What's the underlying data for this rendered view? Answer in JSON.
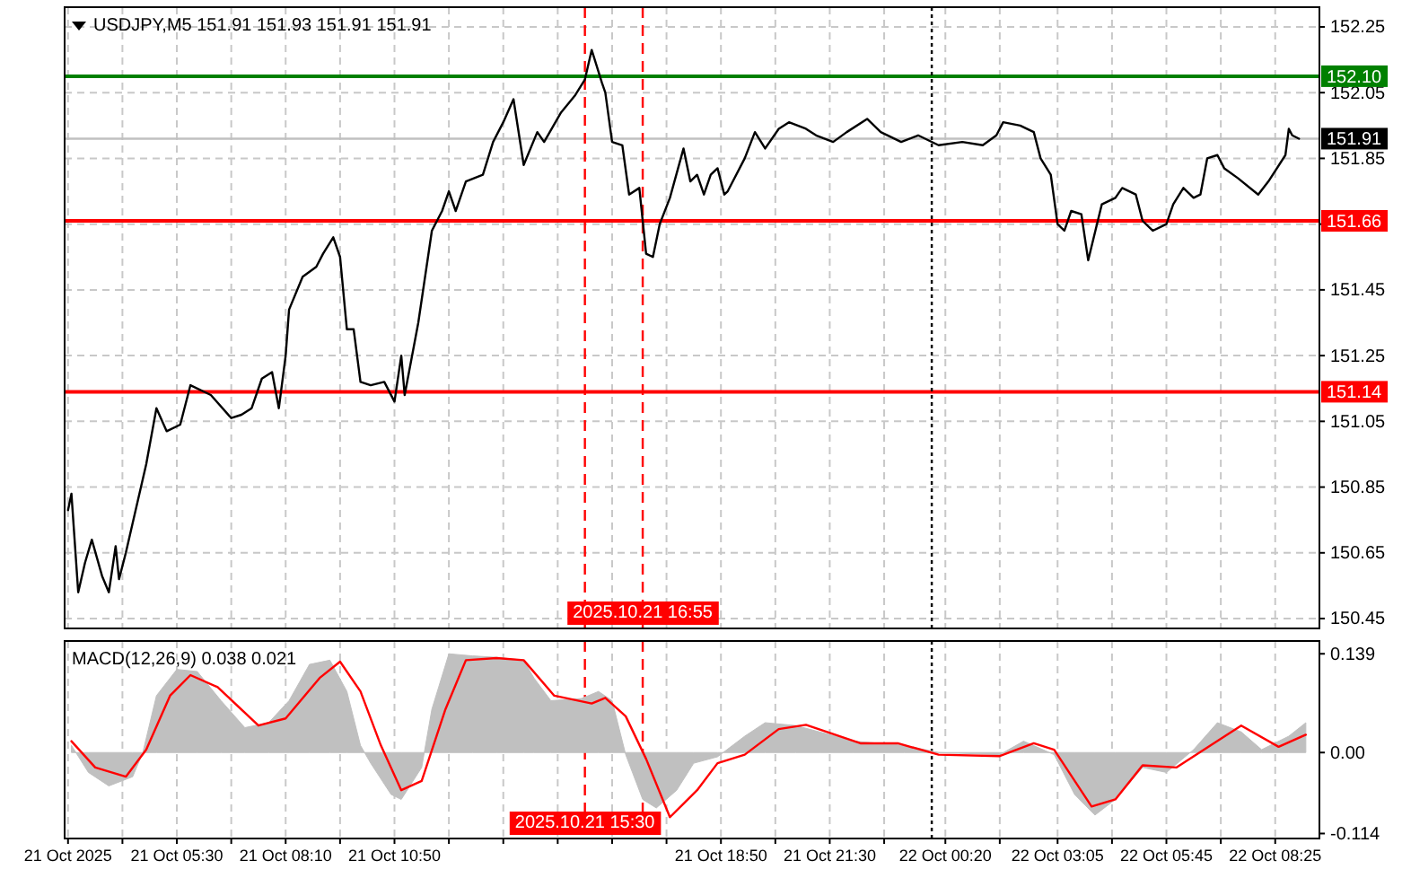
{
  "chart_data": [
    {
      "type": "line",
      "title": "USDJPY,M5  151.91 151.93 151.91 151.91",
      "series": [
        {
          "color": "#000000",
          "x": [
            "2025-10-21T02:50",
            "2025-10-21T02:55",
            "2025-10-21T03:05",
            "2025-10-21T03:15",
            "2025-10-21T03:25",
            "2025-10-21T03:40",
            "2025-10-21T03:50",
            "2025-10-21T04:00",
            "2025-10-21T04:05",
            "2025-10-21T04:15",
            "2025-10-21T04:25",
            "2025-10-21T04:45",
            "2025-10-21T05:00",
            "2025-10-21T05:15",
            "2025-10-21T05:35",
            "2025-10-21T05:50",
            "2025-10-21T06:20",
            "2025-10-21T06:50",
            "2025-10-21T07:05",
            "2025-10-21T07:20",
            "2025-10-21T07:35",
            "2025-10-21T07:50",
            "2025-10-21T08:00",
            "2025-10-21T08:10",
            "2025-10-21T08:15",
            "2025-10-21T08:35",
            "2025-10-21T08:55",
            "2025-10-21T09:05",
            "2025-10-21T09:20",
            "2025-10-21T09:30",
            "2025-10-21T09:40",
            "2025-10-21T09:50",
            "2025-10-21T10:00",
            "2025-10-21T10:15",
            "2025-10-21T10:35",
            "2025-10-21T10:50",
            "2025-10-21T11:00",
            "2025-10-21T11:05",
            "2025-10-21T11:25",
            "2025-10-21T11:45",
            "2025-10-21T12:00",
            "2025-10-21T12:10",
            "2025-10-21T12:20",
            "2025-10-21T12:35",
            "2025-10-21T13:00",
            "2025-10-21T13:15",
            "2025-10-21T13:30",
            "2025-10-21T13:45",
            "2025-10-21T14:00",
            "2025-10-21T14:20",
            "2025-10-21T14:30",
            "2025-10-21T14:55",
            "2025-10-21T15:15",
            "2025-10-21T15:30",
            "2025-10-21T15:40",
            "2025-10-21T15:55",
            "2025-10-21T16:00",
            "2025-10-21T16:10",
            "2025-10-21T16:25",
            "2025-10-21T16:35",
            "2025-10-21T16:50",
            "2025-10-21T17:00",
            "2025-10-21T17:10",
            "2025-10-21T17:20",
            "2025-10-21T17:35",
            "2025-10-21T17:55",
            "2025-10-21T18:05",
            "2025-10-21T18:15",
            "2025-10-21T18:25",
            "2025-10-21T18:35",
            "2025-10-21T18:45",
            "2025-10-21T18:55",
            "2025-10-21T19:00",
            "2025-10-21T19:25",
            "2025-10-21T19:40",
            "2025-10-21T19:55",
            "2025-10-21T20:15",
            "2025-10-21T20:30",
            "2025-10-21T20:55",
            "2025-10-21T21:10",
            "2025-10-21T21:35",
            "2025-10-21T21:55",
            "2025-10-21T22:25",
            "2025-10-21T22:45",
            "2025-10-21T23:15",
            "2025-10-21T23:40",
            "2025-10-22T00:10",
            "2025-10-22T00:45",
            "2025-10-22T01:15",
            "2025-10-22T01:35",
            "2025-10-22T01:45",
            "2025-10-22T02:10",
            "2025-10-22T02:30",
            "2025-10-22T02:40",
            "2025-10-22T02:55",
            "2025-10-22T03:05",
            "2025-10-22T03:15",
            "2025-10-22T03:25",
            "2025-10-22T03:40",
            "2025-10-22T03:50",
            "2025-10-22T04:10",
            "2025-10-22T04:30",
            "2025-10-22T04:40",
            "2025-10-22T05:00",
            "2025-10-22T05:10",
            "2025-10-22T05:25",
            "2025-10-22T05:45",
            "2025-10-22T05:55",
            "2025-10-22T06:10",
            "2025-10-22T06:25",
            "2025-10-22T06:35",
            "2025-10-22T06:45",
            "2025-10-22T07:00",
            "2025-10-22T07:10",
            "2025-10-22T07:30",
            "2025-10-22T08:00",
            "2025-10-22T08:15",
            "2025-10-22T08:40",
            "2025-10-22T08:45",
            "2025-10-22T08:50",
            "2025-10-22T09:00"
          ],
          "values": [
            150.78,
            150.83,
            150.53,
            150.62,
            150.69,
            150.58,
            150.53,
            150.67,
            150.57,
            150.65,
            150.74,
            150.92,
            151.09,
            151.02,
            151.04,
            151.16,
            151.13,
            151.06,
            151.07,
            151.09,
            151.18,
            151.2,
            151.09,
            151.25,
            151.39,
            151.49,
            151.52,
            151.56,
            151.61,
            151.55,
            151.33,
            151.33,
            151.17,
            151.16,
            151.17,
            151.11,
            151.25,
            151.13,
            151.35,
            151.63,
            151.69,
            151.75,
            151.69,
            151.78,
            151.8,
            151.9,
            151.96,
            152.03,
            151.83,
            151.93,
            151.9,
            151.99,
            152.04,
            152.09,
            152.18,
            152.08,
            152.05,
            151.9,
            151.89,
            151.74,
            151.76,
            151.56,
            151.55,
            151.65,
            151.73,
            151.88,
            151.78,
            151.8,
            151.74,
            151.8,
            151.82,
            151.74,
            151.75,
            151.85,
            151.93,
            151.88,
            151.94,
            151.96,
            151.94,
            151.92,
            151.9,
            151.93,
            151.97,
            151.93,
            151.9,
            151.92,
            151.89,
            151.9,
            151.89,
            151.92,
            151.96,
            151.95,
            151.93,
            151.85,
            151.8,
            151.65,
            151.63,
            151.69,
            151.68,
            151.54,
            151.71,
            151.73,
            151.76,
            151.74,
            151.66,
            151.63,
            151.65,
            151.71,
            151.76,
            151.73,
            151.74,
            151.85,
            151.86,
            151.82,
            151.79,
            151.74,
            151.78,
            151.86,
            151.94,
            151.92,
            151.91
          ]
        }
      ],
      "xlim": [
        "2025-10-21T02:45",
        "2025-10-22T09:30"
      ],
      "xticks": [
        {
          "value": "2025-10-21T02:50",
          "label": null
        },
        {
          "value": "2025-10-21T04:10",
          "label": null
        },
        {
          "value": "2025-10-21T05:30",
          "label": null
        },
        {
          "value": "2025-10-21T06:50",
          "label": null
        },
        {
          "value": "2025-10-21T08:10",
          "label": null
        },
        {
          "value": "2025-10-21T09:30",
          "label": null
        },
        {
          "value": "2025-10-21T10:50",
          "label": null
        },
        {
          "value": "2025-10-21T12:10",
          "label": null
        },
        {
          "value": "2025-10-21T13:30",
          "label": null
        },
        {
          "value": "2025-10-21T14:50",
          "label": null
        },
        {
          "value": "2025-10-21T16:10",
          "label": null
        },
        {
          "value": "2025-10-21T17:30",
          "label": null
        },
        {
          "value": "2025-10-21T18:50",
          "label": null
        },
        {
          "value": "2025-10-21T20:10",
          "label": null
        },
        {
          "value": "2025-10-21T21:30",
          "label": null
        },
        {
          "value": "2025-10-21T22:50",
          "label": null
        },
        {
          "value": "2025-10-22T00:20",
          "label": null
        },
        {
          "value": "2025-10-22T01:40",
          "label": null
        },
        {
          "value": "2025-10-22T03:05",
          "label": null
        },
        {
          "value": "2025-10-22T04:25",
          "label": null
        },
        {
          "value": "2025-10-22T05:45",
          "label": null
        },
        {
          "value": "2025-10-22T07:05",
          "label": null
        },
        {
          "value": "2025-10-22T08:25",
          "label": null
        }
      ],
      "ylim": [
        150.42,
        152.31
      ],
      "yticks": [
        152.25,
        152.05,
        151.85,
        {
          "value": 151.65,
          "label": null
        },
        151.45,
        151.25,
        151.05,
        150.85,
        150.65,
        150.45
      ],
      "grid": true,
      "tick_labels": "y",
      "ref_lines": [
        {
          "axis": "y",
          "value": 152.1,
          "label": "152.10",
          "color": "#008000"
        },
        {
          "axis": "y",
          "value": 151.91,
          "label": "151.91",
          "color": "#c0c0c0"
        },
        {
          "axis": "y",
          "value": 151.66,
          "label": "151.66",
          "color": "#ff0000"
        },
        {
          "axis": "y",
          "value": 151.14,
          "label": "151.14",
          "color": "#ff0000"
        },
        {
          "axis": "x",
          "value": "2025-10-21T15:30",
          "color": "#ff0000",
          "line_style": "dashed"
        },
        {
          "axis": "x",
          "value": "2025-10-21T16:55",
          "label": "2025.10.21 16:55",
          "color": "#ff0000",
          "line_style": "dashed"
        },
        {
          "axis": "x",
          "value": "2025-10-22T00:00",
          "color": "#000000",
          "line_style": "dotted"
        }
      ]
    },
    {
      "type": "area",
      "title": "MACD(12,26,9) 0.038 0.021",
      "series": [
        {
          "color": "#c0c0c0",
          "x": [
            "2025-10-21T02:55",
            "2025-10-21T03:20",
            "2025-10-21T03:50",
            "2025-10-21T04:25",
            "2025-10-21T04:40",
            "2025-10-21T05:00",
            "2025-10-21T05:30",
            "2025-10-21T06:00",
            "2025-10-21T06:35",
            "2025-10-21T07:10",
            "2025-10-21T07:45",
            "2025-10-21T08:15",
            "2025-10-21T08:45",
            "2025-10-21T09:15",
            "2025-10-21T09:40",
            "2025-10-21T10:00",
            "2025-10-21T10:15",
            "2025-10-21T10:45",
            "2025-10-21T11:00",
            "2025-10-21T11:30",
            "2025-10-21T11:45",
            "2025-10-21T12:10",
            "2025-10-21T12:45",
            "2025-10-21T13:20",
            "2025-10-21T14:00",
            "2025-10-21T14:15",
            "2025-10-21T14:40",
            "2025-10-21T15:25",
            "2025-10-21T15:50",
            "2025-10-21T16:10",
            "2025-10-21T16:30",
            "2025-10-21T16:55",
            "2025-10-21T17:15",
            "2025-10-21T17:45",
            "2025-10-21T18:10",
            "2025-10-21T18:45",
            "2025-10-21T19:25",
            "2025-10-21T19:55",
            "2025-10-21T20:40",
            "2025-10-21T21:15",
            "2025-10-21T22:05",
            "2025-10-21T23:20",
            "2025-10-22T00:10",
            "2025-10-22T01:40",
            "2025-10-22T02:15",
            "2025-10-22T03:00",
            "2025-10-22T03:30",
            "2025-10-22T04:00",
            "2025-10-22T04:30",
            "2025-10-22T05:10",
            "2025-10-22T05:45",
            "2025-10-22T06:25",
            "2025-10-22T07:00",
            "2025-10-22T07:35",
            "2025-10-22T08:05",
            "2025-10-22T08:45",
            "2025-10-22T09:10"
          ],
          "values": [
            0.01,
            -0.028,
            -0.047,
            -0.034,
            0,
            0.08,
            0.117,
            0.114,
            0.073,
            0.035,
            0.042,
            0.073,
            0.124,
            0.13,
            0.086,
            0.01,
            -0.015,
            -0.059,
            -0.066,
            -0.021,
            0.061,
            0.139,
            0.136,
            0.134,
            0.13,
            0.105,
            0.073,
            0.076,
            0.086,
            0.073,
            -0.003,
            -0.066,
            -0.078,
            -0.053,
            -0.015,
            -0.006,
            0.023,
            0.042,
            0.038,
            0.029,
            0.016,
            0.01,
            0,
            -0.003,
            0.016,
            -0.003,
            -0.059,
            -0.088,
            -0.066,
            -0.021,
            -0.028,
            0.004,
            0.042,
            0.029,
            0.004,
            0.023,
            0.042
          ]
        },
        {
          "type": "line",
          "color": "#ff0000",
          "x": [
            "2025-10-21T02:55",
            "2025-10-21T03:30",
            "2025-10-21T04:15",
            "2025-10-21T04:45",
            "2025-10-21T05:20",
            "2025-10-21T05:50",
            "2025-10-21T06:30",
            "2025-10-21T07:30",
            "2025-10-21T08:10",
            "2025-10-21T09:00",
            "2025-10-21T09:30",
            "2025-10-21T10:00",
            "2025-10-21T10:30",
            "2025-10-21T11:00",
            "2025-10-21T11:30",
            "2025-10-21T12:05",
            "2025-10-21T12:35",
            "2025-10-21T13:20",
            "2025-10-21T14:00",
            "2025-10-21T14:45",
            "2025-10-21T15:40",
            "2025-10-21T16:00",
            "2025-10-21T16:30",
            "2025-10-21T17:00",
            "2025-10-21T17:35",
            "2025-10-21T18:15",
            "2025-10-21T18:45",
            "2025-10-21T19:25",
            "2025-10-21T20:15",
            "2025-10-21T20:55",
            "2025-10-21T22:15",
            "2025-10-21T23:10",
            "2025-10-22T00:10",
            "2025-10-22T01:40",
            "2025-10-22T02:30",
            "2025-10-22T03:00",
            "2025-10-22T03:55",
            "2025-10-22T04:30",
            "2025-10-22T05:10",
            "2025-10-22T06:00",
            "2025-10-22T06:50",
            "2025-10-22T07:35",
            "2025-10-22T08:30",
            "2025-10-22T09:10"
          ],
          "values": [
            0.016,
            -0.021,
            -0.034,
            0.004,
            0.08,
            0.109,
            0.092,
            0.038,
            0.048,
            0.105,
            0.128,
            0.086,
            0.01,
            -0.053,
            -0.04,
            0.061,
            0.13,
            0.133,
            0.13,
            0.08,
            0.069,
            0.077,
            0.051,
            -0.009,
            -0.091,
            -0.053,
            -0.015,
            -0.003,
            0.033,
            0.039,
            0.013,
            0.013,
            -0.003,
            -0.005,
            0.013,
            0.004,
            -0.076,
            -0.066,
            -0.018,
            -0.021,
            0.01,
            0.038,
            0.008,
            0.025
          ]
        }
      ],
      "xlim": [
        "2025-10-21T02:45",
        "2025-10-22T09:30"
      ],
      "xticks": [
        {
          "value": "2025-10-21T02:50",
          "label": "21 Oct 2025"
        },
        {
          "value": "2025-10-21T04:10",
          "label": null
        },
        {
          "value": "2025-10-21T05:30",
          "label": "21 Oct 05:30"
        },
        {
          "value": "2025-10-21T06:50",
          "label": null
        },
        {
          "value": "2025-10-21T08:10",
          "label": "21 Oct 08:10"
        },
        {
          "value": "2025-10-21T09:30",
          "label": null
        },
        {
          "value": "2025-10-21T10:50",
          "label": "21 Oct 10:50"
        },
        {
          "value": "2025-10-21T12:10",
          "label": null
        },
        {
          "value": "2025-10-21T13:30",
          "label": null
        },
        {
          "value": "2025-10-21T14:50",
          "label": null
        },
        {
          "value": "2025-10-21T16:10",
          "label": null
        },
        {
          "value": "2025-10-21T17:30",
          "label": null
        },
        {
          "value": "2025-10-21T18:50",
          "label": "21 Oct 18:50"
        },
        {
          "value": "2025-10-21T20:10",
          "label": null
        },
        {
          "value": "2025-10-21T21:30",
          "label": "21 Oct 21:30"
        },
        {
          "value": "2025-10-21T22:50",
          "label": null
        },
        {
          "value": "2025-10-22T00:20",
          "label": "22 Oct 00:20"
        },
        {
          "value": "2025-10-22T01:40",
          "label": null
        },
        {
          "value": "2025-10-22T03:05",
          "label": "22 Oct 03:05"
        },
        {
          "value": "2025-10-22T04:25",
          "label": null
        },
        {
          "value": "2025-10-22T05:45",
          "label": "22 Oct 05:45"
        },
        {
          "value": "2025-10-22T07:05",
          "label": null
        },
        {
          "value": "2025-10-22T08:25",
          "label": "22 Oct 08:25"
        }
      ],
      "ylim": [
        -0.121,
        0.157
      ],
      "yticks": [
        0.139,
        {
          "value": 0,
          "label": "0.00"
        },
        -0.114
      ],
      "grid": "x",
      "ref_lines": [
        {
          "axis": "x",
          "value": "2025-10-21T15:30",
          "label": "2025.10.21 15:30",
          "color": "#ff0000",
          "line_style": "dashed"
        },
        {
          "axis": "x",
          "value": "2025-10-21T16:55",
          "color": "#ff0000",
          "line_style": "dashed"
        },
        {
          "axis": "x",
          "value": "2025-10-22T00:00",
          "color": "#000000",
          "line_style": "dotted"
        }
      ]
    }
  ]
}
